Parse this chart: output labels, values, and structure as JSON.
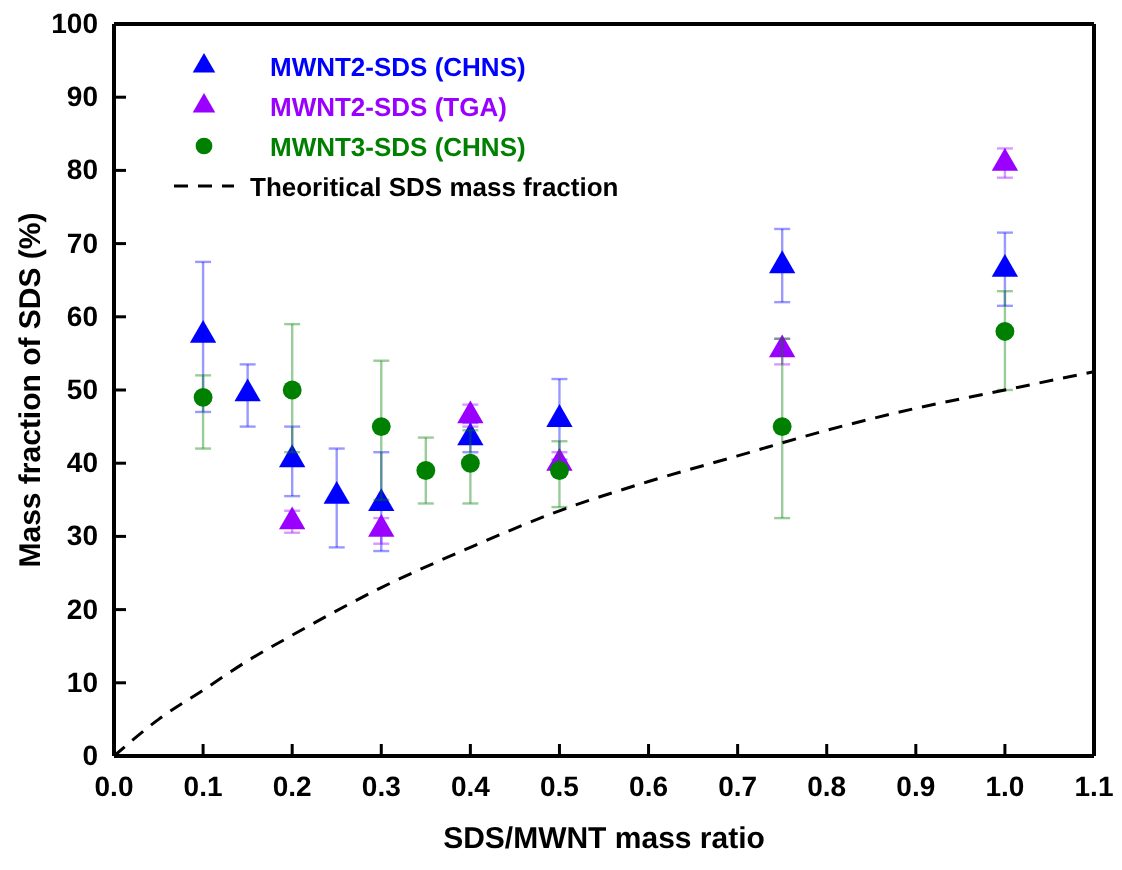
{
  "chart_data": {
    "type": "scatter",
    "xlabel": "SDS/MWNT mass ratio",
    "ylabel": "Mass fraction of SDS (%)",
    "xlim": [
      0,
      1.1
    ],
    "xticks": [
      {
        "value": 0,
        "label": "0.0"
      },
      {
        "value": 0.1,
        "label": "0.1"
      },
      {
        "value": 0.2,
        "label": "0.2"
      },
      {
        "value": 0.3,
        "label": "0.3"
      },
      {
        "value": 0.4,
        "label": "0.4"
      },
      {
        "value": 0.5,
        "label": "0.5"
      },
      {
        "value": 0.6,
        "label": "0.6"
      },
      {
        "value": 0.7,
        "label": "0.7"
      },
      {
        "value": 0.8,
        "label": "0.8"
      },
      {
        "value": 0.9,
        "label": "0.9"
      },
      {
        "value": 1,
        "label": "1.0"
      },
      {
        "value": 1.1,
        "label": "1.1"
      }
    ],
    "ylim": [
      0,
      100
    ],
    "yticks": [
      0,
      10,
      20,
      30,
      40,
      50,
      60,
      70,
      80,
      90,
      100
    ],
    "grid": false,
    "legend": "top left",
    "series": [
      {
        "name": "MWNT2-SDS (CHNS)",
        "color": "#0000ff",
        "marker": "triangle",
        "x": [
          0.1,
          0.15,
          0.2,
          0.25,
          0.3,
          0.4,
          0.5,
          0.75,
          1.0
        ],
        "values": [
          57.5,
          49.5,
          40.5,
          35.5,
          34.5,
          43.5,
          46,
          67,
          66.5
        ],
        "errors": [
          [
            47,
            67.5
          ],
          [
            45,
            53.5
          ],
          [
            35.5,
            45
          ],
          [
            28.5,
            42
          ],
          [
            28,
            41.5
          ],
          [
            41.5,
            45.5
          ],
          [
            40.5,
            51.5
          ],
          [
            62,
            72
          ],
          [
            61.5,
            71.5
          ]
        ]
      },
      {
        "name": "MWNT2-SDS (TGA)",
        "color": "#9900ff",
        "marker": "triangle",
        "x": [
          0.2,
          0.3,
          0.4,
          0.5,
          0.75,
          1.0
        ],
        "values": [
          32,
          31,
          46.5,
          40,
          55.5,
          81
        ],
        "errors": [
          [
            30.5,
            33.5
          ],
          [
            29,
            32.5
          ],
          [
            45,
            48
          ],
          [
            38.5,
            41.5
          ],
          [
            53.5,
            57
          ],
          [
            79,
            83
          ]
        ]
      },
      {
        "name": "MWNT3-SDS (CHNS)",
        "color": "#008000",
        "marker": "circle",
        "x": [
          0.1,
          0.2,
          0.3,
          0.35,
          0.4,
          0.5,
          0.75,
          1.0
        ],
        "values": [
          49,
          50,
          45,
          39,
          40,
          39,
          45,
          58
        ],
        "errors": [
          [
            42,
            52
          ],
          [
            41.5,
            59
          ],
          [
            35,
            54
          ],
          [
            34.5,
            43.5
          ],
          [
            34.5,
            44.5
          ],
          [
            34,
            43
          ],
          [
            32.5,
            57
          ],
          [
            50,
            63.5
          ]
        ]
      },
      {
        "name": "Theoritical SDS mass fraction",
        "type": "line",
        "color": "#000000",
        "line_style": "dashed",
        "marker": "none",
        "x": [
          0,
          0.05,
          0.1,
          0.15,
          0.2,
          0.3,
          0.4,
          0.5,
          0.6,
          0.7,
          0.8,
          0.9,
          1.0,
          1.1
        ],
        "values": [
          0,
          5,
          9,
          13,
          16.5,
          23,
          28.5,
          33.5,
          37.5,
          41,
          44.5,
          47.5,
          50,
          52.5
        ]
      }
    ]
  }
}
